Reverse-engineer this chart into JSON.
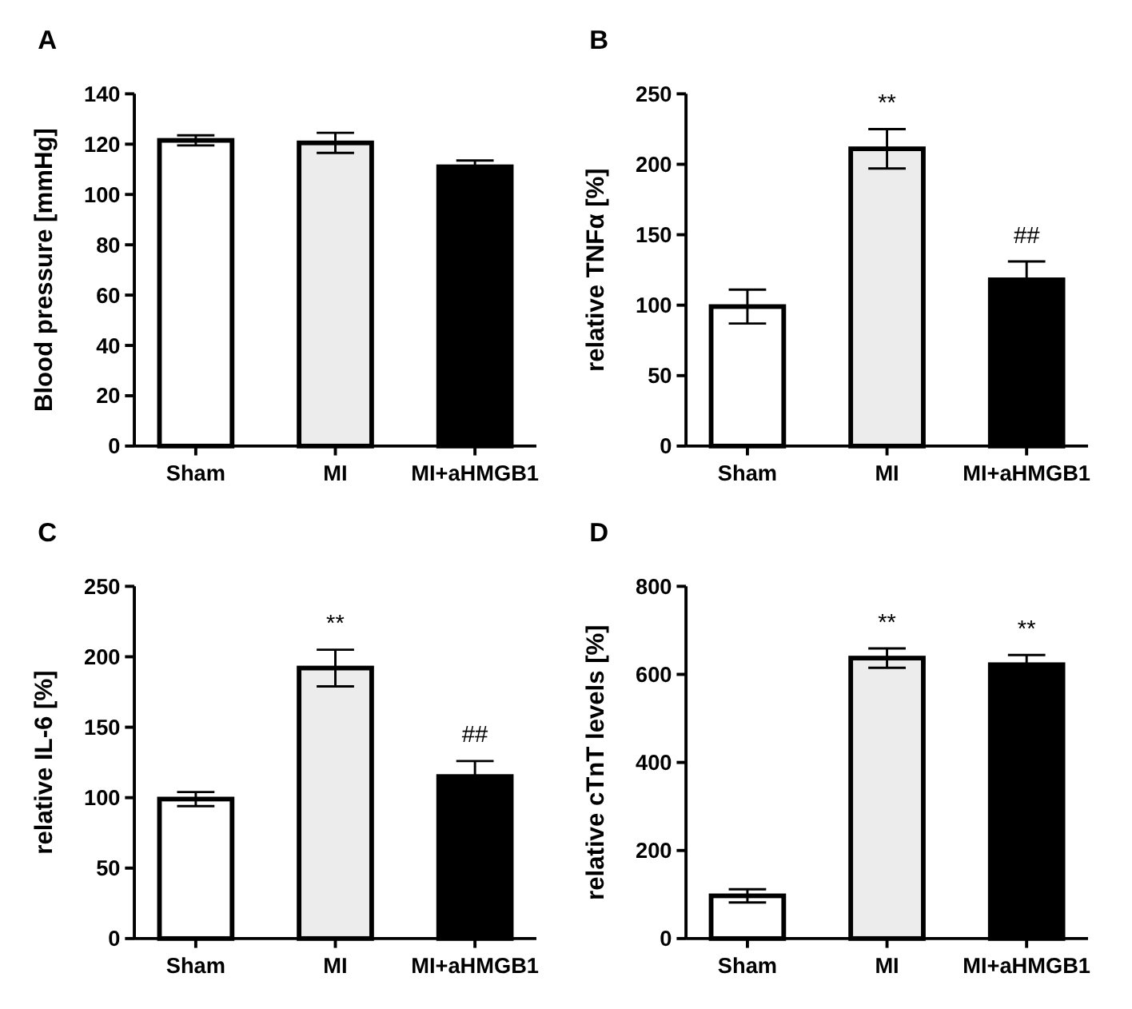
{
  "chart_data": [
    {
      "type": "bar",
      "title": "A",
      "ylabel": "Blood pressure [mmHg]",
      "categories": [
        "Sham",
        "MI",
        "MI+aHMGB1"
      ],
      "values": [
        121.5,
        120.5,
        111
      ],
      "errors": [
        2,
        4,
        2.5
      ],
      "colors": [
        "#ffffff",
        "#ececec",
        "#000000"
      ],
      "ylim": [
        0,
        140
      ],
      "yticks": [
        0,
        20,
        40,
        60,
        80,
        100,
        120,
        140
      ],
      "grid": false
    },
    {
      "type": "bar",
      "title": "B",
      "ylabel": "relative TNFα [%]",
      "categories": [
        "Sham",
        "MI",
        "MI+aHMGB1"
      ],
      "values": [
        99,
        211,
        118
      ],
      "errors": [
        12,
        14,
        13
      ],
      "colors": [
        "#ffffff",
        "#ececec",
        "#000000"
      ],
      "ylim": [
        0,
        250
      ],
      "yticks": [
        0,
        50,
        100,
        150,
        200,
        250
      ],
      "grid": false,
      "annotations": [
        {
          "text": "**",
          "x": "MI",
          "y": 211
        },
        {
          "text": "##",
          "x": "MI+aHMGB1",
          "y": 118
        }
      ]
    },
    {
      "type": "bar",
      "title": "C",
      "ylabel": "relative IL-6 [%]",
      "categories": [
        "Sham",
        "MI",
        "MI+aHMGB1"
      ],
      "values": [
        99,
        192,
        115
      ],
      "errors": [
        5,
        13,
        11
      ],
      "colors": [
        "#ffffff",
        "#ececec",
        "#000000"
      ],
      "ylim": [
        0,
        250
      ],
      "yticks": [
        0,
        50,
        100,
        150,
        200,
        250
      ],
      "grid": false,
      "annotations": [
        {
          "text": "**",
          "x": "MI",
          "y": 192
        },
        {
          "text": "##",
          "x": "MI+aHMGB1",
          "y": 115
        }
      ]
    },
    {
      "type": "bar",
      "title": "D",
      "ylabel": "relative cTnT levels [%]",
      "categories": [
        "Sham",
        "MI",
        "MI+aHMGB1"
      ],
      "values": [
        97,
        637,
        622
      ],
      "errors": [
        15,
        22,
        22
      ],
      "colors": [
        "#ffffff",
        "#ececec",
        "#000000"
      ],
      "ylim": [
        0,
        800
      ],
      "yticks": [
        0,
        200,
        400,
        600,
        800
      ],
      "grid": false,
      "annotations": [
        {
          "text": "**",
          "x": "MI",
          "y": 637
        },
        {
          "text": "**",
          "x": "MI+aHMGB1",
          "y": 622
        }
      ]
    }
  ]
}
